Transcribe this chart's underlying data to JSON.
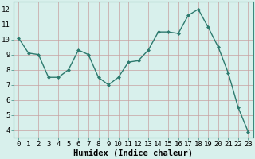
{
  "x": [
    0,
    1,
    2,
    3,
    4,
    5,
    6,
    7,
    8,
    9,
    10,
    11,
    12,
    13,
    14,
    15,
    16,
    17,
    18,
    19,
    20,
    21,
    22,
    23
  ],
  "y": [
    10.1,
    9.1,
    9.0,
    7.5,
    7.5,
    8.0,
    9.3,
    9.0,
    7.5,
    7.0,
    7.5,
    8.5,
    8.6,
    9.3,
    10.5,
    10.5,
    10.4,
    11.6,
    12.0,
    10.8,
    9.5,
    7.8,
    5.5,
    3.9
  ],
  "line_color": "#2d7a6e",
  "marker": "D",
  "marker_size": 2.0,
  "bg_color": "#d8f0ec",
  "grid_color": "#b8d8d4",
  "xlabel": "Humidex (Indice chaleur)",
  "xlim": [
    -0.5,
    23.5
  ],
  "ylim": [
    3.5,
    12.5
  ],
  "yticks": [
    4,
    5,
    6,
    7,
    8,
    9,
    10,
    11,
    12
  ],
  "xtick_labels": [
    "0",
    "1",
    "2",
    "3",
    "4",
    "5",
    "6",
    "7",
    "8",
    "9",
    "10",
    "11",
    "12",
    "13",
    "14",
    "15",
    "16",
    "17",
    "18",
    "19",
    "20",
    "21",
    "22",
    "23"
  ],
  "xlabel_fontsize": 7.5,
  "tick_fontsize": 6.5,
  "spine_color": "#3a8a7e",
  "line_width": 1.0
}
